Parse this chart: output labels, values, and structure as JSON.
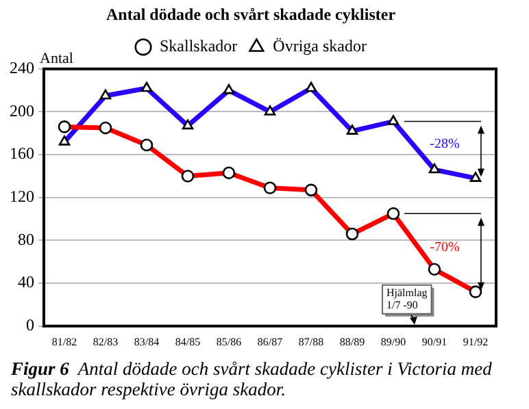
{
  "chart_data": {
    "type": "line",
    "title": "Antal dödade och svårt skadade cyklister",
    "ylabel": "Antal",
    "categories": [
      "81/82",
      "82/83",
      "83/84",
      "84/85",
      "85/86",
      "86/87",
      "87/88",
      "88/89",
      "89/90",
      "90/91",
      "91/92"
    ],
    "series": [
      {
        "name": "Skallskador",
        "color": "#ff0000",
        "marker": "circle",
        "values": [
          186,
          185,
          169,
          140,
          143,
          129,
          127,
          86,
          105,
          53,
          32
        ]
      },
      {
        "name": "Övriga skador",
        "color": "#2a00ff",
        "marker": "triangle",
        "values": [
          172,
          215,
          222,
          187,
          220,
          200,
          222,
          182,
          191,
          146,
          138
        ]
      }
    ],
    "ylim": [
      0,
      240
    ],
    "yticks": [
      0,
      40,
      80,
      120,
      160,
      200,
      240
    ],
    "grid": "y",
    "legend": "top",
    "line_style": "solid",
    "annotations": [
      "-70%",
      "-28%",
      "Hjälmlag\n1/7 -90",
      "Figur 6",
      "Antal dödade och svårt skadade cyklister i Victoria med skallskador respektive övriga skador."
    ]
  }
}
